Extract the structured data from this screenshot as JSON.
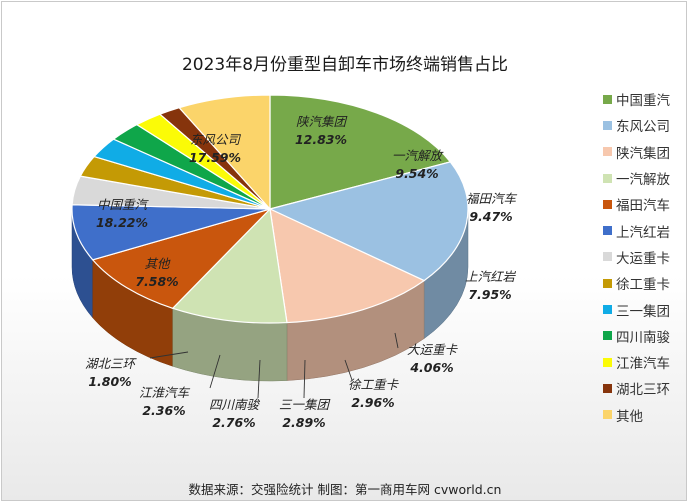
{
  "chart_data": {
    "type": "pie",
    "title": "2023年8月份重型自卸车市场终端销售占比",
    "slices": [
      {
        "name": "中国重汽",
        "value": 18.22,
        "label": "18.22%",
        "color": "#77a94a"
      },
      {
        "name": "东风公司",
        "value": 17.59,
        "label": "17.59%",
        "color": "#9bc1e2"
      },
      {
        "name": "陕汽集团",
        "value": 12.83,
        "label": "12.83%",
        "color": "#f7c8ae"
      },
      {
        "name": "一汽解放",
        "value": 9.54,
        "label": "9.54%",
        "color": "#cfe3b3"
      },
      {
        "name": "福田汽车",
        "value": 9.47,
        "label": "9.47%",
        "color": "#c9560d"
      },
      {
        "name": "上汽红岩",
        "value": 7.95,
        "label": "7.95%",
        "color": "#3f6fca"
      },
      {
        "name": "大运重卡",
        "value": 4.06,
        "label": "4.06%",
        "color": "#d9d9d9"
      },
      {
        "name": "徐工重卡",
        "value": 2.96,
        "label": "2.96%",
        "color": "#c49a05"
      },
      {
        "name": "三一集团",
        "value": 2.89,
        "label": "2.89%",
        "color": "#10ace6"
      },
      {
        "name": "四川南骏",
        "value": 2.76,
        "label": "2.76%",
        "color": "#0fa64a"
      },
      {
        "name": "江淮汽车",
        "value": 2.36,
        "label": "2.36%",
        "color": "#fbfb07"
      },
      {
        "name": "湖北三环",
        "value": 1.8,
        "label": "1.80%",
        "color": "#86340c"
      },
      {
        "name": "其他",
        "value": 7.58,
        "label": "7.58%",
        "color": "#fbd46a"
      }
    ],
    "legend_position": "right",
    "style": "3d-pie"
  },
  "source_text": "数据来源：交强险统计  制图：第一商用车网 cvworld.cn"
}
